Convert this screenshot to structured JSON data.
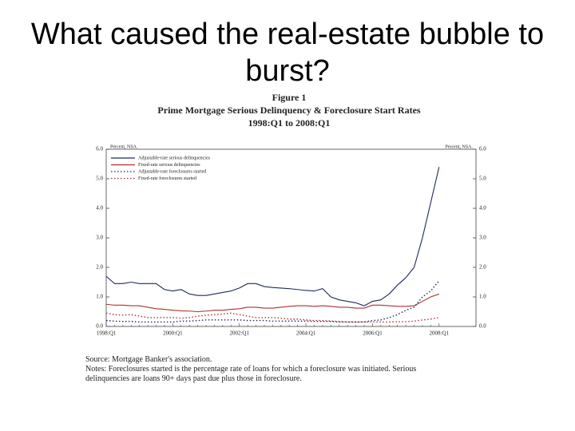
{
  "title": "What caused the real-estate bubble to burst?",
  "chart_data": {
    "type": "line",
    "title": "Figure 1",
    "subtitle": "Prime Mortgage Serious Delinquency & Foreclosure Start Rates",
    "period": "1998:Q1 to 2008:Q1",
    "ylabel": "Percent, NSA.",
    "y2label": "Percent, NSA.",
    "categories": [
      "1998:Q1",
      null,
      null,
      null,
      null,
      null,
      null,
      null,
      "2000:Q1",
      null,
      null,
      null,
      null,
      null,
      null,
      null,
      "2002:Q1",
      null,
      null,
      null,
      null,
      null,
      null,
      null,
      "2004:Q1",
      null,
      null,
      null,
      null,
      null,
      null,
      null,
      "2006:Q1",
      null,
      null,
      null,
      null,
      null,
      null,
      null,
      "2008:Q1"
    ],
    "ylim": [
      0,
      6
    ],
    "yticks": [
      {
        "value": 0,
        "label": "0.0"
      },
      {
        "value": 1,
        "label": "1.0"
      },
      {
        "value": 2,
        "label": "2.0"
      },
      {
        "value": 3,
        "label": "3.0"
      },
      {
        "value": 4,
        "label": "4.0"
      },
      {
        "value": 5,
        "label": "5.0"
      },
      {
        "value": 6,
        "label": "6.0"
      }
    ],
    "y2lim": [
      0,
      6
    ],
    "y2ticks": [
      {
        "value": 0,
        "label": "0.0"
      },
      {
        "value": 1,
        "label": "1.0"
      },
      {
        "value": 2,
        "label": "2.0"
      },
      {
        "value": 3,
        "label": "3.0"
      },
      {
        "value": 4,
        "label": "4.0"
      },
      {
        "value": 5,
        "label": "5.0"
      },
      {
        "value": 6,
        "label": "6.0"
      }
    ],
    "legend": "upper-left",
    "series": [
      {
        "name": "Adjustable-rate serious delinquencies",
        "color": "#1f2a5c",
        "style": "solid",
        "values": [
          1.7,
          1.45,
          1.45,
          1.5,
          1.45,
          1.45,
          1.45,
          1.25,
          1.2,
          1.25,
          1.1,
          1.05,
          1.05,
          1.1,
          1.15,
          1.2,
          1.3,
          1.45,
          1.45,
          1.35,
          1.32,
          1.3,
          1.28,
          1.25,
          1.22,
          1.2,
          1.28,
          1.0,
          0.9,
          0.85,
          0.8,
          0.7,
          0.85,
          0.9,
          1.1,
          1.4,
          1.65,
          2.0,
          3.0,
          4.2,
          5.4
        ]
      },
      {
        "name": "Fixed-rate serious delinquencies",
        "color": "#b03030",
        "style": "solid",
        "values": [
          0.75,
          0.72,
          0.72,
          0.7,
          0.7,
          0.65,
          0.6,
          0.58,
          0.55,
          0.53,
          0.52,
          0.5,
          0.52,
          0.55,
          0.55,
          0.58,
          0.6,
          0.65,
          0.65,
          0.62,
          0.62,
          0.65,
          0.68,
          0.7,
          0.7,
          0.68,
          0.7,
          0.68,
          0.65,
          0.65,
          0.62,
          0.62,
          0.72,
          0.72,
          0.7,
          0.68,
          0.68,
          0.7,
          0.85,
          1.0,
          1.1
        ]
      },
      {
        "name": "Adjustable-rate foreclosures started",
        "color": "#1f2a5c",
        "style": "dotted",
        "values": [
          0.2,
          0.18,
          0.17,
          0.17,
          0.15,
          0.15,
          0.15,
          0.15,
          0.15,
          0.18,
          0.18,
          0.2,
          0.22,
          0.22,
          0.22,
          0.22,
          0.22,
          0.2,
          0.2,
          0.2,
          0.18,
          0.18,
          0.18,
          0.18,
          0.18,
          0.17,
          0.17,
          0.17,
          0.15,
          0.15,
          0.15,
          0.15,
          0.2,
          0.22,
          0.3,
          0.4,
          0.55,
          0.65,
          1.0,
          1.2,
          1.55
        ]
      },
      {
        "name": "Fixed-rate foreclosures started",
        "color": "#b03030",
        "style": "dotted",
        "values": [
          0.45,
          0.4,
          0.38,
          0.4,
          0.35,
          0.3,
          0.3,
          0.3,
          0.3,
          0.28,
          0.3,
          0.35,
          0.38,
          0.4,
          0.42,
          0.45,
          0.4,
          0.35,
          0.3,
          0.3,
          0.3,
          0.28,
          0.25,
          0.25,
          0.22,
          0.2,
          0.2,
          0.18,
          0.17,
          0.15,
          0.15,
          0.15,
          0.15,
          0.15,
          0.15,
          0.16,
          0.16,
          0.18,
          0.22,
          0.25,
          0.3
        ]
      }
    ]
  },
  "source": "Source: Mortgage Banker's association.",
  "notes": "Notes: Foreclosures started is the percentage rate of loans for which a foreclosure was initiated. Serious delinquencies are loans 90+ days past due plus those in foreclosure."
}
